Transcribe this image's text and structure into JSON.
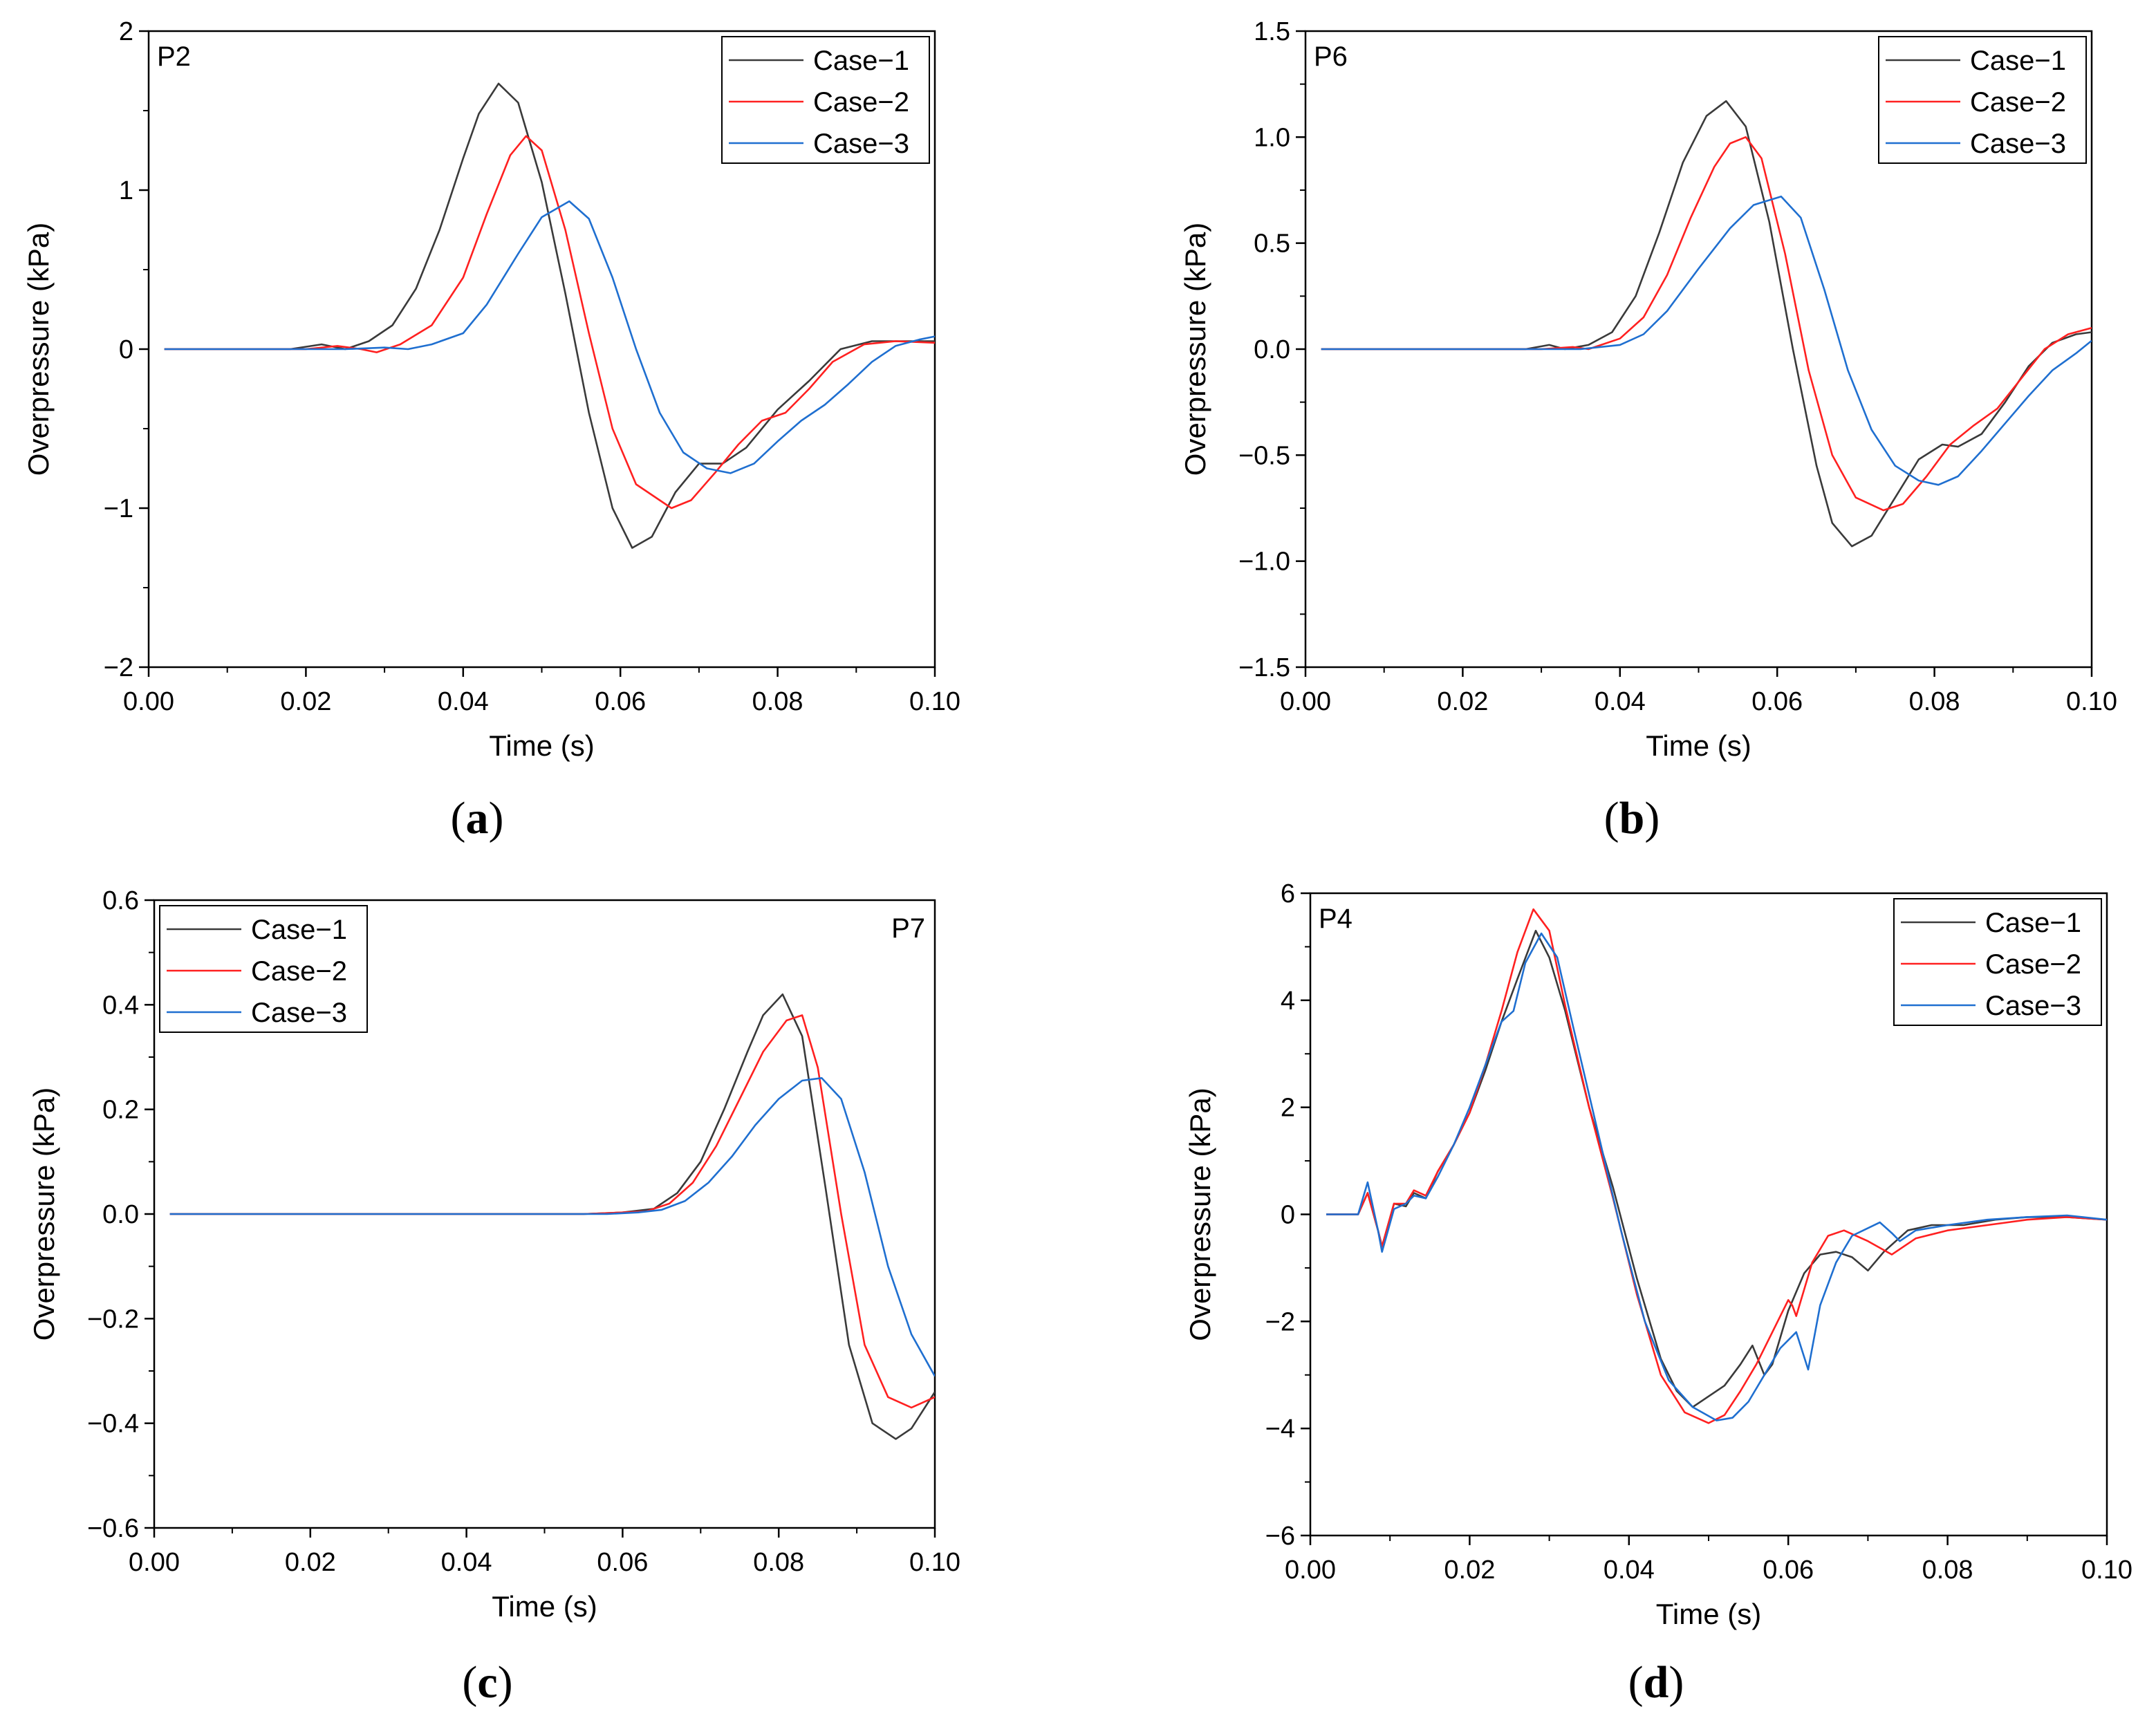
{
  "figure": {
    "captions": [
      "(",
      ")"
    ],
    "colors": {
      "case1": "#3a3a3a",
      "case2": "#ff2020",
      "case3": "#1f6fd0",
      "axis": "#000000"
    }
  },
  "chart_data": [
    {
      "id": "a",
      "caption_letter": "a",
      "type": "line",
      "point_label": "P2",
      "xlabel": "Time (s)",
      "ylabel": "Overpressure (kPa)",
      "xlim": [
        0.0,
        0.1
      ],
      "ylim": [
        -2,
        2
      ],
      "xticks": [
        0.0,
        0.02,
        0.04,
        0.06,
        0.08,
        0.1
      ],
      "xtick_labels": [
        "0.00",
        "0.02",
        "0.04",
        "0.06",
        "0.08",
        "0.10"
      ],
      "yticks": [
        -2,
        -1,
        0,
        1,
        2
      ],
      "ytick_labels": [
        "−2",
        "−1",
        "0",
        "1",
        "2"
      ],
      "legend": [
        "Case−1",
        "Case−2",
        "Case−3"
      ],
      "legend_position": "top-right",
      "label_position": "top-left",
      "series": [
        {
          "name": "Case−1",
          "x": [
            0.002,
            0.018,
            0.022,
            0.025,
            0.028,
            0.031,
            0.034,
            0.037,
            0.04,
            0.042,
            0.0445,
            0.047,
            0.05,
            0.053,
            0.056,
            0.059,
            0.0615,
            0.064,
            0.067,
            0.07,
            0.073,
            0.076,
            0.08,
            0.084,
            0.088,
            0.092,
            0.096,
            0.1
          ],
          "y": [
            0,
            0,
            0.03,
            0.0,
            0.05,
            0.15,
            0.38,
            0.75,
            1.2,
            1.48,
            1.67,
            1.55,
            1.05,
            0.35,
            -0.4,
            -1.0,
            -1.25,
            -1.18,
            -0.9,
            -0.72,
            -0.72,
            -0.62,
            -0.38,
            -0.2,
            0.0,
            0.05,
            0.05,
            0.05
          ]
        },
        {
          "name": "Case−2",
          "x": [
            0.002,
            0.02,
            0.024,
            0.027,
            0.029,
            0.032,
            0.036,
            0.04,
            0.043,
            0.046,
            0.048,
            0.05,
            0.053,
            0.056,
            0.059,
            0.062,
            0.0665,
            0.069,
            0.072,
            0.075,
            0.078,
            0.081,
            0.084,
            0.087,
            0.091,
            0.095,
            0.1
          ],
          "y": [
            0,
            0,
            0.02,
            0.0,
            -0.02,
            0.03,
            0.15,
            0.45,
            0.85,
            1.22,
            1.34,
            1.25,
            0.75,
            0.1,
            -0.5,
            -0.85,
            -1.0,
            -0.95,
            -0.78,
            -0.6,
            -0.45,
            -0.4,
            -0.25,
            -0.08,
            0.03,
            0.05,
            0.04
          ]
        },
        {
          "name": "Case−3",
          "x": [
            0.002,
            0.02,
            0.025,
            0.03,
            0.033,
            0.036,
            0.04,
            0.043,
            0.047,
            0.05,
            0.0535,
            0.056,
            0.059,
            0.062,
            0.065,
            0.068,
            0.071,
            0.074,
            0.077,
            0.08,
            0.083,
            0.086,
            0.089,
            0.092,
            0.095,
            0.098,
            0.1
          ],
          "y": [
            0,
            0,
            0.0,
            0.01,
            0.0,
            0.03,
            0.1,
            0.28,
            0.6,
            0.83,
            0.93,
            0.82,
            0.45,
            0.0,
            -0.4,
            -0.65,
            -0.75,
            -0.78,
            -0.72,
            -0.58,
            -0.45,
            -0.35,
            -0.22,
            -0.08,
            0.02,
            0.06,
            0.08
          ]
        }
      ]
    },
    {
      "id": "b",
      "caption_letter": "b",
      "type": "line",
      "point_label": "P6",
      "xlabel": "Time (s)",
      "ylabel": "Overpressure (kPa)",
      "xlim": [
        0.0,
        0.1
      ],
      "ylim": [
        -1.5,
        1.5
      ],
      "xticks": [
        0.0,
        0.02,
        0.04,
        0.06,
        0.08,
        0.1
      ],
      "xtick_labels": [
        "0.00",
        "0.02",
        "0.04",
        "0.06",
        "0.08",
        "0.10"
      ],
      "yticks": [
        -1.5,
        -1.0,
        -0.5,
        0.0,
        0.5,
        1.0,
        1.5
      ],
      "ytick_labels": [
        "−1.5",
        "−1.0",
        "−0.5",
        "0.0",
        "0.5",
        "1.0",
        "1.5"
      ],
      "legend": [
        "Case−1",
        "Case−2",
        "Case−3"
      ],
      "legend_position": "top-right",
      "label_position": "top-left",
      "series": [
        {
          "name": "Case−1",
          "x": [
            0.002,
            0.028,
            0.031,
            0.033,
            0.036,
            0.039,
            0.042,
            0.045,
            0.048,
            0.051,
            0.0535,
            0.056,
            0.059,
            0.062,
            0.065,
            0.067,
            0.0695,
            0.072,
            0.075,
            0.078,
            0.081,
            0.083,
            0.086,
            0.089,
            0.092,
            0.095,
            0.098,
            0.1
          ],
          "y": [
            0,
            0,
            0.02,
            0.0,
            0.02,
            0.08,
            0.25,
            0.55,
            0.88,
            1.1,
            1.17,
            1.05,
            0.6,
            0.0,
            -0.55,
            -0.82,
            -0.93,
            -0.88,
            -0.7,
            -0.52,
            -0.45,
            -0.46,
            -0.4,
            -0.25,
            -0.08,
            0.03,
            0.07,
            0.08
          ]
        },
        {
          "name": "Case−2",
          "x": [
            0.002,
            0.03,
            0.034,
            0.036,
            0.04,
            0.043,
            0.046,
            0.049,
            0.052,
            0.054,
            0.056,
            0.058,
            0.061,
            0.064,
            0.067,
            0.07,
            0.0735,
            0.076,
            0.079,
            0.082,
            0.085,
            0.088,
            0.091,
            0.094,
            0.097,
            0.1
          ],
          "y": [
            0,
            0,
            0.01,
            0.0,
            0.05,
            0.15,
            0.35,
            0.62,
            0.86,
            0.97,
            1.0,
            0.9,
            0.45,
            -0.1,
            -0.5,
            -0.7,
            -0.76,
            -0.73,
            -0.6,
            -0.45,
            -0.36,
            -0.28,
            -0.14,
            0.0,
            0.07,
            0.1
          ]
        },
        {
          "name": "Case−3",
          "x": [
            0.002,
            0.03,
            0.035,
            0.04,
            0.043,
            0.046,
            0.05,
            0.054,
            0.057,
            0.0605,
            0.063,
            0.066,
            0.069,
            0.072,
            0.075,
            0.078,
            0.0805,
            0.083,
            0.086,
            0.089,
            0.092,
            0.095,
            0.098,
            0.1
          ],
          "y": [
            0,
            0,
            0.0,
            0.02,
            0.07,
            0.18,
            0.38,
            0.57,
            0.68,
            0.72,
            0.62,
            0.28,
            -0.1,
            -0.38,
            -0.55,
            -0.62,
            -0.64,
            -0.6,
            -0.48,
            -0.35,
            -0.22,
            -0.1,
            -0.02,
            0.04
          ]
        }
      ]
    },
    {
      "id": "c",
      "caption_letter": "c",
      "type": "line",
      "point_label": "P7",
      "xlabel": "Time (s)",
      "ylabel": "Overpressure (kPa)",
      "xlim": [
        0.0,
        0.1
      ],
      "ylim": [
        -0.6,
        0.6
      ],
      "xticks": [
        0.0,
        0.02,
        0.04,
        0.06,
        0.08,
        0.1
      ],
      "xtick_labels": [
        "0.00",
        "0.02",
        "0.04",
        "0.06",
        "0.08",
        "0.10"
      ],
      "yticks": [
        -0.6,
        -0.4,
        -0.2,
        0.0,
        0.2,
        0.4,
        0.6
      ],
      "ytick_labels": [
        "−0.6",
        "−0.4",
        "−0.2",
        "0.0",
        "0.2",
        "0.4",
        "0.6"
      ],
      "legend": [
        "Case−1",
        "Case−2",
        "Case−3"
      ],
      "legend_position": "top-left",
      "label_position": "top-right",
      "series": [
        {
          "name": "Case−1",
          "x": [
            0.002,
            0.055,
            0.06,
            0.064,
            0.067,
            0.07,
            0.073,
            0.076,
            0.078,
            0.0805,
            0.083,
            0.086,
            0.089,
            0.092,
            0.095,
            0.097,
            0.1
          ],
          "y": [
            0,
            0,
            0.003,
            0.01,
            0.04,
            0.1,
            0.2,
            0.31,
            0.38,
            0.42,
            0.34,
            0.05,
            -0.25,
            -0.4,
            -0.43,
            -0.41,
            -0.34
          ]
        },
        {
          "name": "Case−2",
          "x": [
            0.002,
            0.055,
            0.06,
            0.063,
            0.066,
            0.069,
            0.072,
            0.075,
            0.078,
            0.081,
            0.083,
            0.085,
            0.088,
            0.091,
            0.094,
            0.097,
            0.1
          ],
          "y": [
            0,
            0,
            0.003,
            0.005,
            0.02,
            0.06,
            0.13,
            0.22,
            0.31,
            0.37,
            0.38,
            0.28,
            0.0,
            -0.25,
            -0.35,
            -0.37,
            -0.35
          ]
        },
        {
          "name": "Case−3",
          "x": [
            0.002,
            0.058,
            0.062,
            0.065,
            0.068,
            0.071,
            0.074,
            0.077,
            0.08,
            0.083,
            0.0855,
            0.088,
            0.091,
            0.094,
            0.097,
            0.1
          ],
          "y": [
            0,
            0,
            0.003,
            0.008,
            0.025,
            0.06,
            0.11,
            0.17,
            0.22,
            0.255,
            0.26,
            0.22,
            0.08,
            -0.1,
            -0.23,
            -0.31
          ]
        }
      ]
    },
    {
      "id": "d",
      "caption_letter": "d",
      "type": "line",
      "point_label": "P4",
      "xlabel": "Time (s)",
      "ylabel": "Overpressure (kPa)",
      "xlim": [
        0.0,
        0.1
      ],
      "ylim": [
        -6,
        6
      ],
      "xticks": [
        0.0,
        0.02,
        0.04,
        0.06,
        0.08,
        0.1
      ],
      "xtick_labels": [
        "0.00",
        "0.02",
        "0.04",
        "0.06",
        "0.08",
        "0.10"
      ],
      "yticks": [
        -6,
        -4,
        -2,
        0,
        2,
        4,
        6
      ],
      "ytick_labels": [
        "−6",
        "−4",
        "−2",
        "0",
        "2",
        "4",
        "6"
      ],
      "legend": [
        "Case−1",
        "Case−2",
        "Case−3"
      ],
      "legend_position": "top-right",
      "label_position": "top-left",
      "series": [
        {
          "name": "Case−1",
          "x": [
            0.002,
            0.006,
            0.0072,
            0.0085,
            0.009,
            0.0105,
            0.012,
            0.013,
            0.0145,
            0.016,
            0.018,
            0.02,
            0.022,
            0.024,
            0.026,
            0.0283,
            0.03,
            0.032,
            0.035,
            0.038,
            0.041,
            0.044,
            0.046,
            0.048,
            0.05,
            0.052,
            0.054,
            0.0555,
            0.057,
            0.058,
            0.06,
            0.062,
            0.064,
            0.066,
            0.068,
            0.07,
            0.072,
            0.075,
            0.078,
            0.082,
            0.086,
            0.09,
            0.095,
            0.1
          ],
          "y": [
            0,
            0,
            0.4,
            -0.3,
            -0.6,
            0.2,
            0.15,
            0.4,
            0.3,
            0.8,
            1.3,
            1.9,
            2.7,
            3.6,
            4.4,
            5.3,
            4.8,
            3.8,
            2.0,
            0.5,
            -1.2,
            -2.7,
            -3.3,
            -3.6,
            -3.4,
            -3.2,
            -2.8,
            -2.45,
            -3.0,
            -2.8,
            -1.8,
            -1.1,
            -0.75,
            -0.7,
            -0.8,
            -1.05,
            -0.7,
            -0.3,
            -0.2,
            -0.2,
            -0.1,
            -0.05,
            -0.05,
            -0.1
          ]
        },
        {
          "name": "Case−2",
          "x": [
            0.002,
            0.006,
            0.0072,
            0.0085,
            0.009,
            0.0105,
            0.012,
            0.013,
            0.0145,
            0.016,
            0.018,
            0.02,
            0.022,
            0.024,
            0.026,
            0.028,
            0.03,
            0.032,
            0.035,
            0.038,
            0.041,
            0.044,
            0.047,
            0.05,
            0.052,
            0.054,
            0.056,
            0.058,
            0.06,
            0.0605,
            0.061,
            0.063,
            0.065,
            0.067,
            0.07,
            0.073,
            0.076,
            0.08,
            0.085,
            0.09,
            0.095,
            0.1
          ],
          "y": [
            0,
            0,
            0.4,
            -0.3,
            -0.6,
            0.2,
            0.2,
            0.45,
            0.35,
            0.8,
            1.3,
            1.9,
            2.8,
            3.8,
            4.9,
            5.7,
            5.3,
            3.9,
            2.0,
            0.3,
            -1.5,
            -3.0,
            -3.7,
            -3.9,
            -3.75,
            -3.3,
            -2.8,
            -2.2,
            -1.6,
            -1.7,
            -1.9,
            -0.9,
            -0.4,
            -0.3,
            -0.5,
            -0.75,
            -0.45,
            -0.3,
            -0.2,
            -0.1,
            -0.05,
            -0.1
          ]
        },
        {
          "name": "Case−3",
          "x": [
            0.002,
            0.006,
            0.0072,
            0.0085,
            0.009,
            0.0105,
            0.012,
            0.013,
            0.0145,
            0.016,
            0.018,
            0.02,
            0.022,
            0.024,
            0.0255,
            0.027,
            0.029,
            0.031,
            0.033,
            0.036,
            0.039,
            0.042,
            0.045,
            0.048,
            0.051,
            0.053,
            0.055,
            0.057,
            0.059,
            0.061,
            0.0625,
            0.064,
            0.066,
            0.068,
            0.0715,
            0.073,
            0.074,
            0.076,
            0.08,
            0.085,
            0.09,
            0.095,
            0.1
          ],
          "y": [
            0,
            0,
            0.6,
            -0.3,
            -0.7,
            0.1,
            0.2,
            0.35,
            0.3,
            0.7,
            1.3,
            2.0,
            2.8,
            3.6,
            3.8,
            4.7,
            5.25,
            4.8,
            3.5,
            1.6,
            -0.3,
            -2.0,
            -3.1,
            -3.6,
            -3.85,
            -3.8,
            -3.5,
            -3.0,
            -2.5,
            -2.2,
            -2.9,
            -1.7,
            -0.9,
            -0.4,
            -0.15,
            -0.35,
            -0.5,
            -0.3,
            -0.2,
            -0.1,
            -0.05,
            -0.02,
            -0.1
          ]
        }
      ]
    }
  ]
}
